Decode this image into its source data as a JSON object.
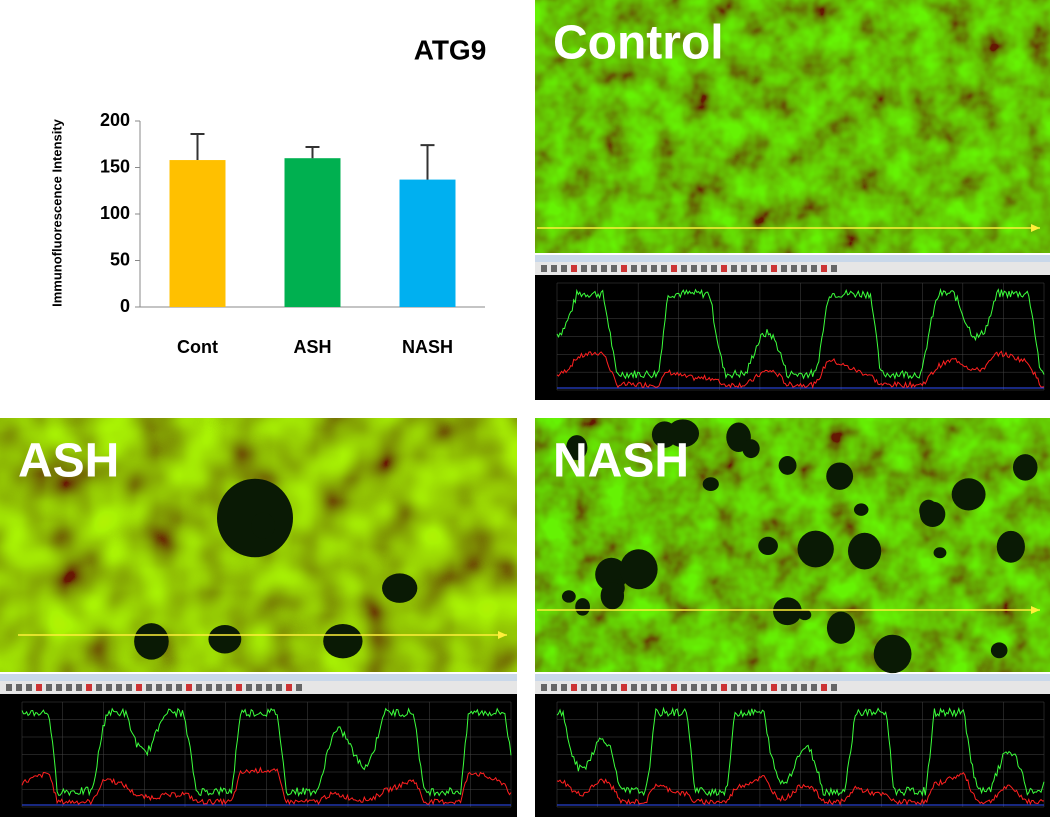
{
  "chart_data": {
    "type": "bar",
    "title": "ATG9",
    "y_label": "Immunofluorescence Intensity",
    "categories": [
      "Cont",
      "ASH",
      "NASH"
    ],
    "values": [
      158,
      160,
      137
    ],
    "errors": [
      28,
      12,
      37
    ],
    "colors": [
      "#ffc000",
      "#00b050",
      "#00b0f0"
    ],
    "ylim": [
      0,
      200
    ],
    "yticks": [
      0,
      50,
      100,
      150,
      200
    ],
    "grid": false
  },
  "panels": [
    {
      "label": "Control"
    },
    {
      "label": "ASH"
    },
    {
      "label": "NASH"
    }
  ]
}
